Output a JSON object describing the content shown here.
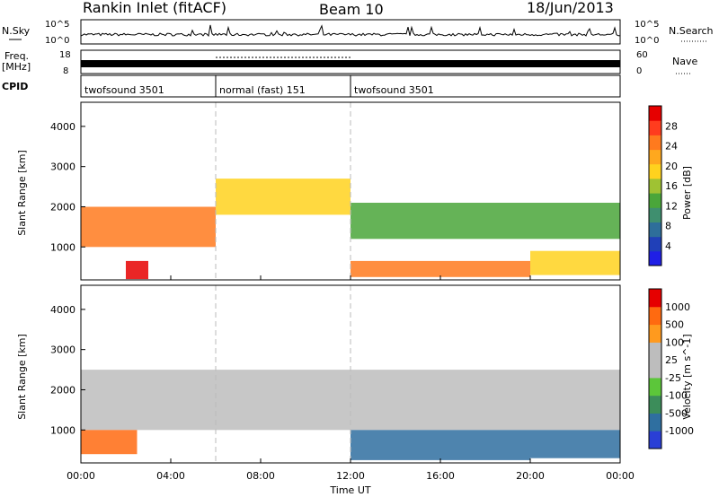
{
  "header": {
    "title": "Rankin Inlet (fitACF)",
    "beam": "Beam 10",
    "date": "18/Jun/2013"
  },
  "noise_panel": {
    "left_label": "N.Sky",
    "right_label": "N.Search",
    "ticks_left": [
      "10^5",
      "10^0"
    ],
    "ticks_right": [
      "10^5",
      "10^0"
    ]
  },
  "freq_panel": {
    "left_label_top": "Freq.",
    "left_label_unit": "[MHz]",
    "ticks_left": [
      "18",
      "8"
    ],
    "right_label": "Nave",
    "ticks_right": [
      "60",
      "0"
    ]
  },
  "cpid": {
    "label": "CPID",
    "segments": [
      {
        "name": "twofsound 3501",
        "start": 0,
        "end": 6
      },
      {
        "name": "normal (fast) 151",
        "start": 6,
        "end": 12
      },
      {
        "name": "twofsound 3501",
        "start": 12,
        "end": 24
      }
    ]
  },
  "x_axis": {
    "label": "Time UT",
    "ticks": [
      "00:00",
      "04:00",
      "08:00",
      "12:00",
      "16:00",
      "20:00",
      "00:00"
    ],
    "range": [
      0,
      24
    ]
  },
  "chart_data": [
    {
      "type": "heatmap",
      "title": "Power",
      "ylabel": "Slant Range [km]",
      "y_ticks": [
        "1000",
        "2000",
        "3000",
        "4000"
      ],
      "ylim": [
        180,
        4600
      ],
      "colorbar": {
        "label": "Power [dB]",
        "ticks": [
          "4",
          "8",
          "12",
          "16",
          "20",
          "24",
          "28"
        ],
        "colors": [
          "#1f1fe6",
          "#2040b8",
          "#2e6e9a",
          "#3f8f6f",
          "#4aa63a",
          "#9fc233",
          "#ffd21e",
          "#ffa81e",
          "#ff7a1e",
          "#ff3c1e",
          "#e60000"
        ]
      },
      "echo_regions": [
        {
          "t0": 0.0,
          "t1": 6.0,
          "r0": 1000,
          "r1": 2000,
          "level": 0.82
        },
        {
          "t0": 6.0,
          "t1": 12.0,
          "r0": 1800,
          "r1": 2700,
          "level": 0.6
        },
        {
          "t0": 12.0,
          "t1": 24.0,
          "r0": 1200,
          "r1": 2100,
          "level": 0.35
        },
        {
          "t0": 2.0,
          "t1": 3.0,
          "r0": 200,
          "r1": 650,
          "level": 0.95
        },
        {
          "t0": 12.0,
          "t1": 20.0,
          "r0": 250,
          "r1": 650,
          "level": 0.78
        },
        {
          "t0": 20.0,
          "t1": 24.0,
          "r0": 300,
          "r1": 900,
          "level": 0.62
        }
      ]
    },
    {
      "type": "heatmap",
      "title": "Velocity",
      "ylabel": "Slant Range [km]",
      "y_ticks": [
        "1000",
        "2000",
        "3000",
        "4000"
      ],
      "ylim": [
        180,
        4600
      ],
      "colorbar": {
        "label": "Velocity [m s^-1]",
        "ticks": [
          "1000",
          "500",
          "100",
          "25",
          "-25",
          "-100",
          "-500",
          "-1000"
        ],
        "colors": [
          "#2a3fd6",
          "#2f6fa0",
          "#3c8d5a",
          "#5cc63a",
          "#bdbdbd",
          "#bdbdbd",
          "#ff9a1e",
          "#ff6a10",
          "#e60000"
        ]
      },
      "echo_regions": [
        {
          "t0": 0.0,
          "t1": 24.0,
          "r0": 1000,
          "r1": 2500,
          "level": 0.5
        },
        {
          "t0": 0.0,
          "t1": 2.5,
          "r0": 400,
          "r1": 1000,
          "level": 0.82
        },
        {
          "t0": 12.0,
          "t1": 20.0,
          "r0": 250,
          "r1": 1000,
          "level": 0.12
        },
        {
          "t0": 20.0,
          "t1": 24.0,
          "r0": 300,
          "r1": 1000,
          "level": 0.1
        }
      ]
    }
  ]
}
